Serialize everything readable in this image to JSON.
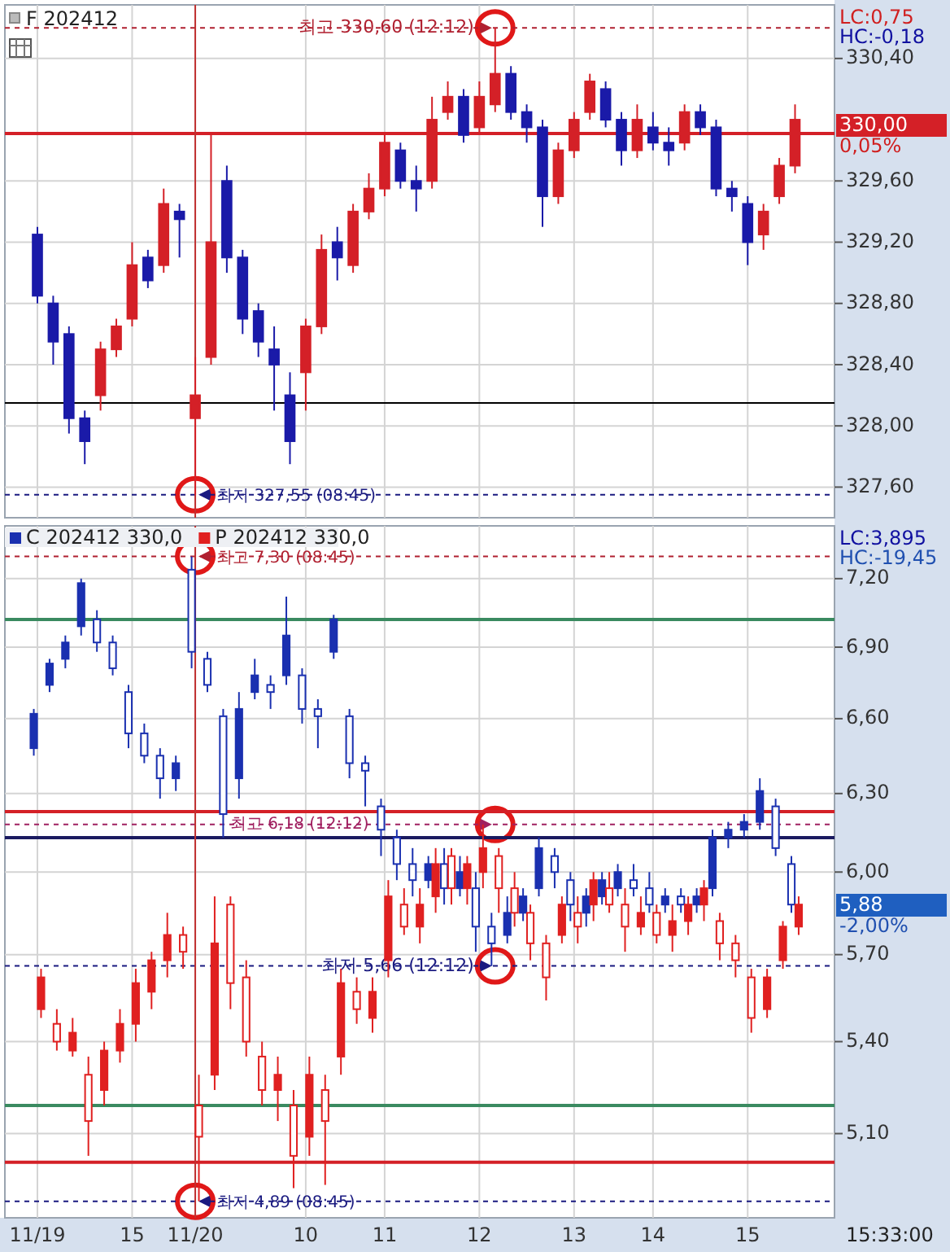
{
  "chart_data": [
    {
      "type": "candlestick",
      "title": "F 202412",
      "tick_labels": "y",
      "grid": true,
      "categories": [
        "11/19",
        null,
        null,
        null,
        null,
        null,
        "15",
        null,
        null,
        null,
        "11/20",
        null,
        null,
        null,
        null,
        null,
        null,
        "10",
        null,
        null,
        null,
        null,
        "11",
        null,
        null,
        null,
        null,
        null,
        "12",
        null,
        null,
        null,
        null,
        null,
        "13",
        null,
        null,
        null,
        null,
        "14",
        null,
        null,
        null,
        null,
        null,
        "15",
        null,
        null,
        null
      ],
      "ohlc": [
        [
          329.25,
          329.3,
          328.8,
          328.85
        ],
        [
          328.8,
          328.85,
          328.4,
          328.55
        ],
        [
          328.6,
          328.65,
          327.95,
          328.05
        ],
        [
          328.05,
          328.1,
          327.75,
          327.9
        ],
        [
          328.2,
          328.55,
          328.1,
          328.5
        ],
        [
          328.5,
          328.7,
          328.45,
          328.65
        ],
        [
          328.7,
          329.2,
          328.65,
          329.05
        ],
        [
          329.1,
          329.15,
          328.9,
          328.95
        ],
        [
          329.05,
          329.55,
          329.0,
          329.45
        ],
        [
          329.4,
          329.45,
          329.1,
          329.35
        ],
        [
          328.05,
          328.45,
          327.55,
          328.2
        ],
        [
          328.45,
          329.9,
          328.4,
          329.2
        ],
        [
          329.6,
          329.7,
          329.0,
          329.1
        ],
        [
          329.1,
          329.15,
          328.6,
          328.7
        ],
        [
          328.75,
          328.8,
          328.45,
          328.55
        ],
        [
          328.5,
          328.65,
          328.1,
          328.4
        ],
        [
          328.2,
          328.35,
          327.75,
          327.9
        ],
        [
          328.35,
          328.7,
          328.1,
          328.65
        ],
        [
          328.65,
          329.25,
          328.6,
          329.15
        ],
        [
          329.2,
          329.3,
          328.95,
          329.1
        ],
        [
          329.05,
          329.45,
          329.0,
          329.4
        ],
        [
          329.4,
          329.65,
          329.35,
          329.55
        ],
        [
          329.55,
          329.9,
          329.5,
          329.85
        ],
        [
          329.8,
          329.85,
          329.55,
          329.6
        ],
        [
          329.6,
          329.7,
          329.4,
          329.55
        ],
        [
          329.6,
          330.15,
          329.55,
          330.0
        ],
        [
          330.05,
          330.25,
          330.0,
          330.15
        ],
        [
          330.15,
          330.2,
          329.85,
          329.9
        ],
        [
          329.95,
          330.25,
          329.9,
          330.15
        ],
        [
          330.1,
          330.6,
          330.05,
          330.3
        ],
        [
          330.3,
          330.35,
          330.0,
          330.05
        ],
        [
          330.05,
          330.1,
          329.85,
          329.95
        ],
        [
          329.95,
          330.0,
          329.3,
          329.5
        ],
        [
          329.5,
          329.85,
          329.45,
          329.8
        ],
        [
          329.8,
          330.05,
          329.75,
          330.0
        ],
        [
          330.05,
          330.3,
          330.0,
          330.25
        ],
        [
          330.2,
          330.25,
          329.95,
          330.0
        ],
        [
          330.0,
          330.05,
          329.7,
          329.8
        ],
        [
          329.8,
          330.1,
          329.75,
          330.0
        ],
        [
          329.95,
          330.05,
          329.8,
          329.85
        ],
        [
          329.85,
          329.95,
          329.7,
          329.8
        ],
        [
          329.85,
          330.1,
          329.8,
          330.05
        ],
        [
          330.05,
          330.1,
          329.9,
          329.95
        ],
        [
          329.95,
          330.0,
          329.5,
          329.55
        ],
        [
          329.55,
          329.6,
          329.4,
          329.5
        ],
        [
          329.45,
          329.5,
          329.05,
          329.2
        ],
        [
          329.25,
          329.45,
          329.15,
          329.4
        ],
        [
          329.5,
          329.75,
          329.45,
          329.7
        ],
        [
          329.7,
          330.1,
          329.65,
          330.0
        ]
      ],
      "colors": [
        "#1a1aa8",
        "#1a1aa8",
        "#1a1aa8",
        "#1a1aa8",
        "#d42027",
        "#d42027",
        "#d42027",
        "#1a1aa8",
        "#d42027",
        "#1a1aa8",
        "#d42027",
        "#d42027",
        "#1a1aa8",
        "#1a1aa8",
        "#1a1aa8",
        "#1a1aa8",
        "#1a1aa8",
        "#d42027",
        "#d42027",
        "#1a1aa8",
        "#d42027",
        "#d42027",
        "#d42027",
        "#1a1aa8",
        "#1a1aa8",
        "#d42027",
        "#d42027",
        "#1a1aa8",
        "#d42027",
        "#d42027",
        "#1a1aa8",
        "#1a1aa8",
        "#1a1aa8",
        "#d42027",
        "#d42027",
        "#d42027",
        "#1a1aa8",
        "#1a1aa8",
        "#d42027",
        "#1a1aa8",
        "#1a1aa8",
        "#d42027",
        "#1a1aa8",
        "#1a1aa8",
        "#1a1aa8",
        "#1a1aa8",
        "#d42027",
        "#d42027",
        "#d42027"
      ],
      "ylim": [
        327.4,
        330.75
      ],
      "yticks": [
        {
          "value": 327.6,
          "label": "327,60"
        },
        {
          "value": 328.0,
          "label": "328,00"
        },
        {
          "value": 328.4,
          "label": "328,40"
        },
        {
          "value": 328.8,
          "label": "328,80"
        },
        {
          "value": 329.2,
          "label": "329,20"
        },
        {
          "value": 329.6,
          "label": "329,60"
        },
        {
          "value": 330.4,
          "label": "330,40"
        }
      ],
      "ref_lines": [
        {
          "axis": "y",
          "value": 329.91,
          "color": "#d42027",
          "line_style": "solid"
        },
        {
          "axis": "y",
          "value": 328.15,
          "color": "#000000",
          "line_style": "solid"
        },
        {
          "axis": "y",
          "value": 330.6,
          "label": "최고 330,60 (12:12)",
          "color": "#b02030",
          "line_style": "dashed"
        },
        {
          "axis": "y",
          "value": 327.55,
          "label": "최저 327,55 (08:45)",
          "color": "#1a1a80",
          "line_style": "dashed"
        },
        {
          "axis": "x",
          "value": "11/20",
          "color": "#c03030",
          "line_style": "solid"
        }
      ],
      "annotations": [
        "LC:0,75",
        "HC:-0,18",
        "330,00",
        "0,05%"
      ]
    },
    {
      "type": "candlestick",
      "log": "y",
      "grid": true,
      "legend": "top left",
      "categories": [
        "11/19",
        null,
        null,
        null,
        null,
        null,
        "15",
        null,
        null,
        null,
        "11/20",
        null,
        null,
        null,
        null,
        null,
        null,
        "10",
        null,
        null,
        null,
        null,
        "11",
        null,
        null,
        null,
        null,
        null,
        "12",
        null,
        null,
        null,
        null,
        null,
        "13",
        null,
        null,
        null,
        null,
        "14",
        null,
        null,
        null,
        null,
        null,
        "15",
        null,
        null,
        null
      ],
      "series": [
        {
          "name": "C 202412 330,0",
          "color": "#1a30b0",
          "ohlc": [
            [
              6.48,
              6.64,
              6.45,
              6.62
            ],
            [
              6.74,
              6.85,
              6.71,
              6.83
            ],
            [
              6.85,
              6.95,
              6.81,
              6.92
            ],
            [
              6.99,
              7.2,
              6.95,
              7.18
            ],
            [
              7.02,
              7.06,
              6.88,
              6.92
            ],
            [
              6.92,
              6.95,
              6.78,
              6.81
            ],
            [
              6.71,
              6.74,
              6.48,
              6.54
            ],
            [
              6.54,
              6.58,
              6.42,
              6.45
            ],
            [
              6.45,
              6.48,
              6.28,
              6.36
            ],
            [
              6.36,
              6.45,
              6.31,
              6.42
            ],
            [
              7.24,
              7.3,
              6.81,
              6.88
            ],
            [
              6.85,
              6.88,
              6.71,
              6.74
            ],
            [
              6.61,
              6.64,
              6.13,
              6.22
            ],
            [
              6.36,
              6.71,
              6.28,
              6.64
            ],
            [
              6.71,
              6.85,
              6.68,
              6.78
            ],
            [
              6.74,
              6.78,
              6.64,
              6.71
            ],
            [
              6.78,
              7.12,
              6.74,
              6.95
            ],
            [
              6.78,
              6.81,
              6.58,
              6.64
            ],
            [
              6.64,
              6.68,
              6.48,
              6.61
            ],
            [
              6.88,
              7.04,
              6.85,
              7.02
            ],
            [
              6.61,
              6.64,
              6.36,
              6.42
            ],
            [
              6.42,
              6.45,
              6.25,
              6.39
            ],
            [
              6.25,
              6.28,
              6.06,
              6.16
            ],
            [
              6.13,
              6.16,
              5.97,
              6.03
            ],
            [
              6.03,
              6.09,
              5.91,
              5.97
            ],
            [
              5.97,
              6.06,
              5.94,
              6.03
            ],
            [
              6.03,
              6.09,
              5.88,
              5.94
            ],
            [
              5.94,
              6.06,
              5.91,
              6.0
            ],
            [
              5.94,
              6.0,
              5.71,
              5.8
            ],
            [
              5.8,
              5.85,
              5.66,
              5.74
            ],
            [
              5.77,
              5.91,
              5.74,
              5.85
            ],
            [
              5.85,
              5.94,
              5.82,
              5.91
            ],
            [
              5.94,
              6.13,
              5.91,
              6.09
            ],
            [
              6.06,
              6.09,
              5.94,
              6.0
            ],
            [
              5.97,
              6.0,
              5.82,
              5.88
            ],
            [
              5.85,
              5.94,
              5.8,
              5.91
            ],
            [
              5.91,
              6.0,
              5.88,
              5.97
            ],
            [
              5.94,
              6.03,
              5.91,
              6.0
            ],
            [
              5.97,
              6.03,
              5.91,
              5.94
            ],
            [
              5.94,
              6.0,
              5.85,
              5.88
            ],
            [
              5.88,
              5.94,
              5.85,
              5.91
            ],
            [
              5.91,
              5.94,
              5.85,
              5.88
            ],
            [
              5.88,
              5.94,
              5.85,
              5.91
            ],
            [
              5.94,
              6.16,
              5.91,
              6.13
            ],
            [
              6.13,
              6.19,
              6.09,
              6.16
            ],
            [
              6.16,
              6.22,
              6.13,
              6.19
            ],
            [
              6.19,
              6.36,
              6.16,
              6.31
            ],
            [
              6.25,
              6.28,
              6.06,
              6.09
            ],
            [
              6.03,
              6.06,
              5.85,
              5.88
            ]
          ]
        },
        {
          "name": "P 202412 330,0",
          "color": "#e02020",
          "ohlc": [
            [
              5.51,
              5.65,
              5.48,
              5.62
            ],
            [
              5.46,
              5.51,
              5.37,
              5.4
            ],
            [
              5.37,
              5.48,
              5.35,
              5.43
            ],
            [
              5.29,
              5.35,
              5.03,
              5.14
            ],
            [
              5.24,
              5.4,
              5.19,
              5.37
            ],
            [
              5.37,
              5.51,
              5.33,
              5.46
            ],
            [
              5.46,
              5.65,
              5.4,
              5.6
            ],
            [
              5.57,
              5.71,
              5.51,
              5.68
            ],
            [
              5.68,
              5.85,
              5.62,
              5.77
            ],
            [
              5.77,
              5.8,
              5.65,
              5.71
            ],
            [
              5.19,
              5.29,
              4.89,
              5.09
            ],
            [
              5.29,
              5.91,
              5.24,
              5.74
            ],
            [
              5.88,
              5.91,
              5.51,
              5.6
            ],
            [
              5.62,
              5.68,
              5.35,
              5.4
            ],
            [
              5.35,
              5.4,
              5.19,
              5.24
            ],
            [
              5.24,
              5.35,
              5.14,
              5.29
            ],
            [
              5.19,
              5.24,
              4.93,
              5.03
            ],
            [
              5.09,
              5.35,
              5.03,
              5.29
            ],
            [
              5.24,
              5.29,
              4.94,
              5.14
            ],
            [
              5.35,
              5.65,
              5.29,
              5.6
            ],
            [
              5.57,
              5.62,
              5.46,
              5.51
            ],
            [
              5.48,
              5.62,
              5.43,
              5.57
            ],
            [
              5.68,
              5.97,
              5.62,
              5.91
            ],
            [
              5.88,
              5.94,
              5.77,
              5.8
            ],
            [
              5.8,
              5.94,
              5.74,
              5.88
            ],
            [
              5.91,
              6.09,
              5.85,
              6.03
            ],
            [
              6.06,
              6.09,
              5.88,
              5.94
            ],
            [
              5.94,
              6.06,
              5.88,
              6.03
            ],
            [
              6.0,
              6.18,
              5.94,
              6.09
            ],
            [
              6.06,
              6.09,
              5.85,
              5.94
            ],
            [
              5.94,
              6.0,
              5.8,
              5.85
            ],
            [
              5.85,
              5.88,
              5.68,
              5.74
            ],
            [
              5.74,
              5.77,
              5.54,
              5.62
            ],
            [
              5.77,
              5.91,
              5.74,
              5.88
            ],
            [
              5.85,
              5.91,
              5.74,
              5.8
            ],
            [
              5.88,
              6.0,
              5.82,
              5.97
            ],
            [
              5.94,
              6.0,
              5.85,
              5.88
            ],
            [
              5.88,
              5.94,
              5.71,
              5.8
            ],
            [
              5.8,
              5.91,
              5.77,
              5.85
            ],
            [
              5.85,
              5.88,
              5.74,
              5.77
            ],
            [
              5.77,
              5.88,
              5.71,
              5.82
            ],
            [
              5.82,
              5.91,
              5.77,
              5.88
            ],
            [
              5.88,
              5.97,
              5.82,
              5.94
            ],
            [
              5.82,
              5.85,
              5.68,
              5.74
            ],
            [
              5.74,
              5.77,
              5.62,
              5.68
            ],
            [
              5.62,
              5.65,
              5.43,
              5.48
            ],
            [
              5.51,
              5.65,
              5.48,
              5.62
            ],
            [
              5.68,
              5.82,
              5.65,
              5.8
            ],
            [
              5.8,
              5.91,
              5.77,
              5.88
            ]
          ]
        }
      ],
      "ylim": [
        4.84,
        7.44
      ],
      "yticks": [
        {
          "value": 5.1,
          "label": "5,10"
        },
        {
          "value": 5.4,
          "label": "5,40"
        },
        {
          "value": 5.7,
          "label": "5,70"
        },
        {
          "value": 6.0,
          "label": "6,00"
        },
        {
          "value": 6.3,
          "label": "6,30"
        },
        {
          "value": 6.6,
          "label": "6,60"
        },
        {
          "value": 6.9,
          "label": "6,90"
        },
        {
          "value": 7.2,
          "label": "7,20"
        }
      ],
      "ref_lines": [
        {
          "axis": "y",
          "value": 7.02,
          "color": "#3a8a60",
          "line_style": "solid"
        },
        {
          "axis": "y",
          "value": 5.19,
          "color": "#3a8a60",
          "line_style": "solid"
        },
        {
          "axis": "y",
          "value": 6.23,
          "color": "#d42027",
          "line_style": "solid"
        },
        {
          "axis": "y",
          "value": 5.01,
          "color": "#d42027",
          "line_style": "solid"
        },
        {
          "axis": "y",
          "value": 6.13,
          "color": "#1a1a60",
          "line_style": "solid"
        },
        {
          "axis": "y",
          "value": 7.3,
          "label": "최고 7,30 (08:45)",
          "color": "#b02030",
          "line_style": "dashed"
        },
        {
          "axis": "y",
          "value": 6.18,
          "label": "최고 6,18 (12:12)",
          "color": "#a02060",
          "line_style": "dashed"
        },
        {
          "axis": "y",
          "value": 5.66,
          "label": "최저 5,66 (12:12)",
          "color": "#1a1a80",
          "line_style": "dashed"
        },
        {
          "axis": "y",
          "value": 4.89,
          "label": "최저 4,89 (08:45)",
          "color": "#1a1a80",
          "line_style": "dashed"
        },
        {
          "axis": "x",
          "value": "11/20",
          "color": "#c03030",
          "line_style": "solid"
        }
      ],
      "annotations": [
        "LC:3,895",
        "HC:-19,45",
        "5,88",
        "-2,00%",
        "15:33:00"
      ]
    }
  ]
}
